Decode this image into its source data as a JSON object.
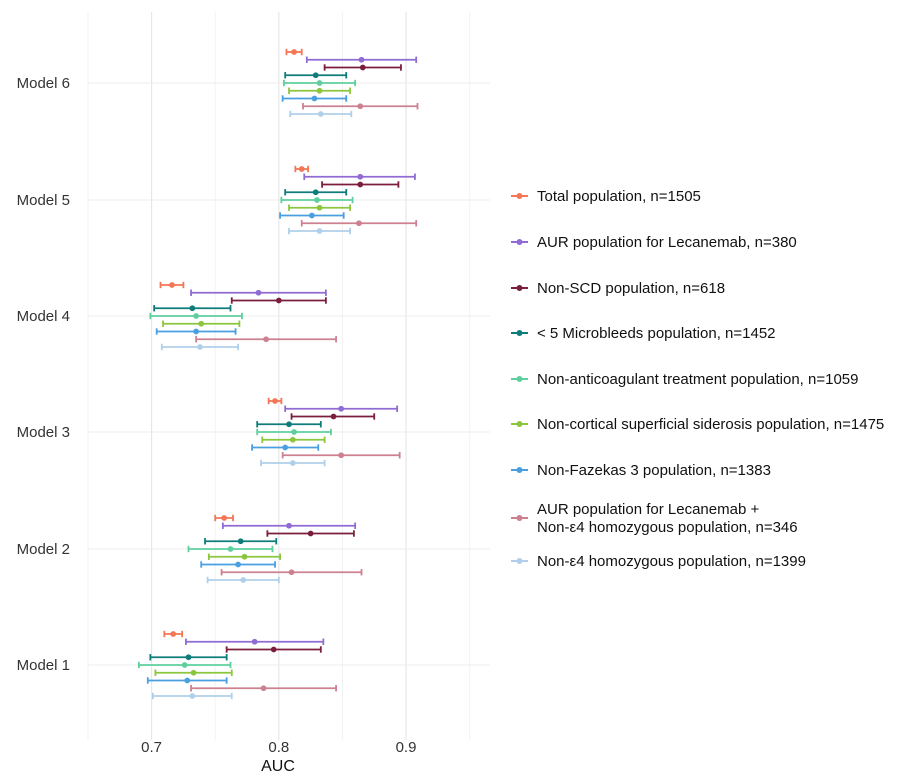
{
  "chart_data": {
    "type": "forest",
    "xlabel": "AUC",
    "xlim": [
      0.65,
      0.966
    ],
    "x_ticks": [
      0.7,
      0.8,
      0.9
    ],
    "grid": true,
    "legend_position": "right",
    "categories": [
      "Model 1",
      "Model 2",
      "Model 3",
      "Model 4",
      "Model 5",
      "Model 6"
    ],
    "series": [
      {
        "name": "Total population, n=1505",
        "color": "#f47655",
        "points": [
          {
            "model": "Model 6",
            "auc": 0.812,
            "lo": 0.806,
            "hi": 0.818
          },
          {
            "model": "Model 5",
            "auc": 0.818,
            "lo": 0.813,
            "hi": 0.823
          },
          {
            "model": "Model 4",
            "auc": 0.716,
            "lo": 0.707,
            "hi": 0.725
          },
          {
            "model": "Model 3",
            "auc": 0.797,
            "lo": 0.792,
            "hi": 0.802
          },
          {
            "model": "Model 2",
            "auc": 0.757,
            "lo": 0.75,
            "hi": 0.764
          },
          {
            "model": "Model 1",
            "auc": 0.717,
            "lo": 0.71,
            "hi": 0.724
          }
        ]
      },
      {
        "name": "AUR population for Lecanemab, n=380",
        "color": "#8f6bd3",
        "points": [
          {
            "model": "Model 6",
            "auc": 0.865,
            "lo": 0.822,
            "hi": 0.908
          },
          {
            "model": "Model 5",
            "auc": 0.864,
            "lo": 0.82,
            "hi": 0.907
          },
          {
            "model": "Model 4",
            "auc": 0.784,
            "lo": 0.731,
            "hi": 0.837
          },
          {
            "model": "Model 3",
            "auc": 0.849,
            "lo": 0.805,
            "hi": 0.893
          },
          {
            "model": "Model 2",
            "auc": 0.808,
            "lo": 0.756,
            "hi": 0.86
          },
          {
            "model": "Model 1",
            "auc": 0.781,
            "lo": 0.727,
            "hi": 0.835
          }
        ]
      },
      {
        "name": "Non-SCD population, n=618",
        "color": "#7b1e3c",
        "points": [
          {
            "model": "Model 6",
            "auc": 0.866,
            "lo": 0.836,
            "hi": 0.896
          },
          {
            "model": "Model 5",
            "auc": 0.864,
            "lo": 0.834,
            "hi": 0.894
          },
          {
            "model": "Model 4",
            "auc": 0.8,
            "lo": 0.763,
            "hi": 0.837
          },
          {
            "model": "Model 3",
            "auc": 0.843,
            "lo": 0.81,
            "hi": 0.875
          },
          {
            "model": "Model 2",
            "auc": 0.825,
            "lo": 0.791,
            "hi": 0.859
          },
          {
            "model": "Model 1",
            "auc": 0.796,
            "lo": 0.759,
            "hi": 0.833
          }
        ]
      },
      {
        "name": "< 5 Microbleeds population, n=1452",
        "color": "#0e7c7b",
        "points": [
          {
            "model": "Model 6",
            "auc": 0.829,
            "lo": 0.805,
            "hi": 0.853
          },
          {
            "model": "Model 5",
            "auc": 0.829,
            "lo": 0.805,
            "hi": 0.853
          },
          {
            "model": "Model 4",
            "auc": 0.732,
            "lo": 0.702,
            "hi": 0.762
          },
          {
            "model": "Model 3",
            "auc": 0.808,
            "lo": 0.783,
            "hi": 0.833
          },
          {
            "model": "Model 2",
            "auc": 0.77,
            "lo": 0.742,
            "hi": 0.798
          },
          {
            "model": "Model 1",
            "auc": 0.729,
            "lo": 0.699,
            "hi": 0.759
          }
        ]
      },
      {
        "name": "Non-anticoagulant treatment population, n=1059",
        "color": "#5fcf9e",
        "points": [
          {
            "model": "Model 6",
            "auc": 0.832,
            "lo": 0.804,
            "hi": 0.86
          },
          {
            "model": "Model 5",
            "auc": 0.83,
            "lo": 0.802,
            "hi": 0.858
          },
          {
            "model": "Model 4",
            "auc": 0.735,
            "lo": 0.699,
            "hi": 0.771
          },
          {
            "model": "Model 3",
            "auc": 0.812,
            "lo": 0.783,
            "hi": 0.841
          },
          {
            "model": "Model 2",
            "auc": 0.762,
            "lo": 0.729,
            "hi": 0.795
          },
          {
            "model": "Model 1",
            "auc": 0.726,
            "lo": 0.69,
            "hi": 0.762
          }
        ]
      },
      {
        "name": "Non-cortical superficial siderosis population, n=1475",
        "color": "#8cc63f",
        "points": [
          {
            "model": "Model 6",
            "auc": 0.832,
            "lo": 0.808,
            "hi": 0.856
          },
          {
            "model": "Model 5",
            "auc": 0.832,
            "lo": 0.808,
            "hi": 0.856
          },
          {
            "model": "Model 4",
            "auc": 0.739,
            "lo": 0.709,
            "hi": 0.769
          },
          {
            "model": "Model 3",
            "auc": 0.811,
            "lo": 0.787,
            "hi": 0.836
          },
          {
            "model": "Model 2",
            "auc": 0.773,
            "lo": 0.745,
            "hi": 0.801
          },
          {
            "model": "Model 1",
            "auc": 0.733,
            "lo": 0.703,
            "hi": 0.763
          }
        ]
      },
      {
        "name": "Non-Fazekas 3 population, n=1383",
        "color": "#4a9fe0",
        "points": [
          {
            "model": "Model 6",
            "auc": 0.828,
            "lo": 0.803,
            "hi": 0.853
          },
          {
            "model": "Model 5",
            "auc": 0.826,
            "lo": 0.801,
            "hi": 0.851
          },
          {
            "model": "Model 4",
            "auc": 0.735,
            "lo": 0.704,
            "hi": 0.766
          },
          {
            "model": "Model 3",
            "auc": 0.805,
            "lo": 0.779,
            "hi": 0.831
          },
          {
            "model": "Model 2",
            "auc": 0.768,
            "lo": 0.739,
            "hi": 0.797
          },
          {
            "model": "Model 1",
            "auc": 0.728,
            "lo": 0.697,
            "hi": 0.759
          }
        ]
      },
      {
        "name": "AUR population for Lecanemab +\nNon-ε4 homozygous population, n=346",
        "color": "#cc8090",
        "points": [
          {
            "model": "Model 6",
            "auc": 0.864,
            "lo": 0.819,
            "hi": 0.909
          },
          {
            "model": "Model 5",
            "auc": 0.863,
            "lo": 0.818,
            "hi": 0.908
          },
          {
            "model": "Model 4",
            "auc": 0.79,
            "lo": 0.735,
            "hi": 0.845
          },
          {
            "model": "Model 3",
            "auc": 0.849,
            "lo": 0.803,
            "hi": 0.895
          },
          {
            "model": "Model 2",
            "auc": 0.81,
            "lo": 0.755,
            "hi": 0.865
          },
          {
            "model": "Model 1",
            "auc": 0.788,
            "lo": 0.731,
            "hi": 0.845
          }
        ]
      },
      {
        "name": "Non-ε4 homozygous population, n=1399",
        "color": "#b0cfea",
        "points": [
          {
            "model": "Model 6",
            "auc": 0.833,
            "lo": 0.809,
            "hi": 0.857
          },
          {
            "model": "Model 5",
            "auc": 0.832,
            "lo": 0.808,
            "hi": 0.856
          },
          {
            "model": "Model 4",
            "auc": 0.738,
            "lo": 0.708,
            "hi": 0.768
          },
          {
            "model": "Model 3",
            "auc": 0.811,
            "lo": 0.786,
            "hi": 0.836
          },
          {
            "model": "Model 2",
            "auc": 0.772,
            "lo": 0.744,
            "hi": 0.8
          },
          {
            "model": "Model 1",
            "auc": 0.732,
            "lo": 0.701,
            "hi": 0.763
          }
        ]
      }
    ]
  }
}
